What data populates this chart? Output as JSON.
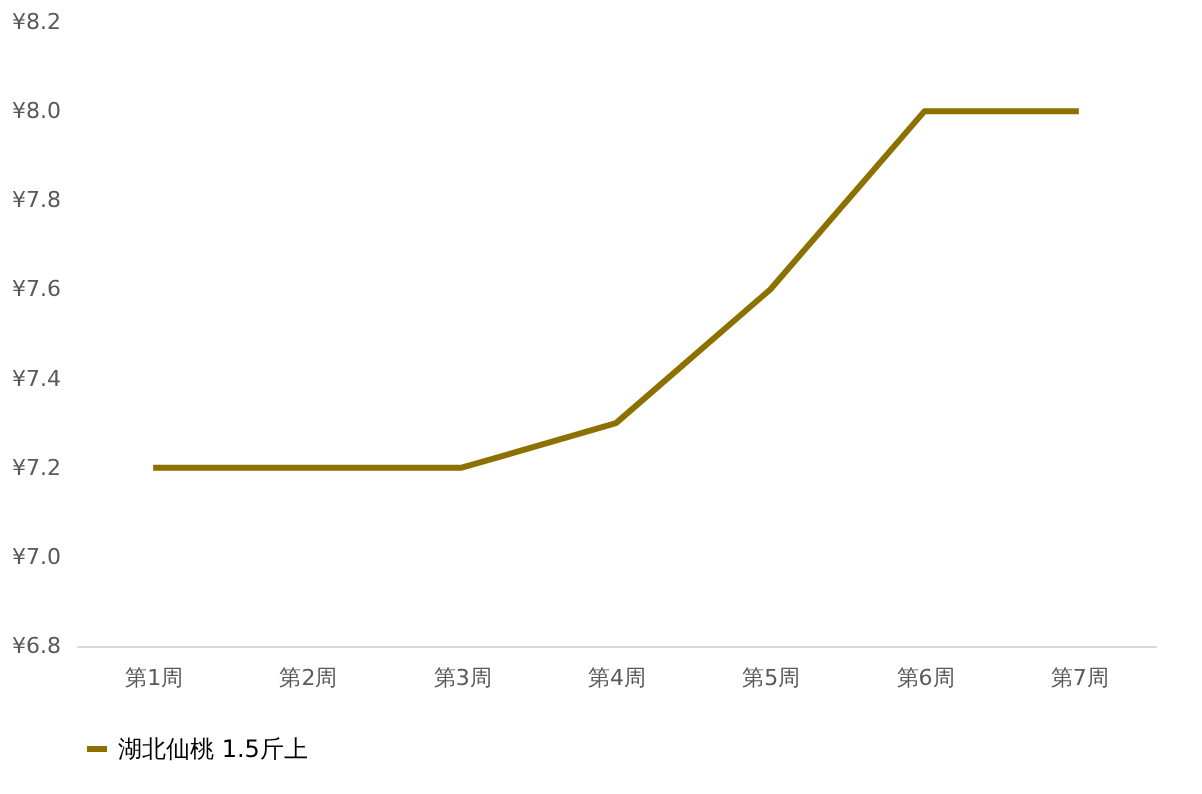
{
  "chart_data": {
    "type": "line",
    "categories": [
      "第1周",
      "第2周",
      "第3周",
      "第4周",
      "第5周",
      "第6周",
      "第7周"
    ],
    "series": [
      {
        "name": "湖北仙桃 1.5斤上",
        "color": "#8c7100",
        "values": [
          7.2,
          7.2,
          7.2,
          7.3,
          7.6,
          8.0,
          8.0
        ]
      }
    ],
    "ylim": [
      6.8,
      8.2
    ],
    "yticks": [
      {
        "value": 6.8,
        "label": "¥6.8"
      },
      {
        "value": 7.0,
        "label": "¥7.0"
      },
      {
        "value": 7.2,
        "label": "¥7.2"
      },
      {
        "value": 7.4,
        "label": "¥7.4"
      },
      {
        "value": 7.6,
        "label": "¥7.6"
      },
      {
        "value": 7.8,
        "label": "¥7.8"
      },
      {
        "value": 8.0,
        "label": "¥8.0"
      },
      {
        "value": 8.2,
        "label": "¥8.2"
      }
    ],
    "grid": false,
    "legend": "bottom",
    "marker": "none",
    "line_style": "solid"
  }
}
